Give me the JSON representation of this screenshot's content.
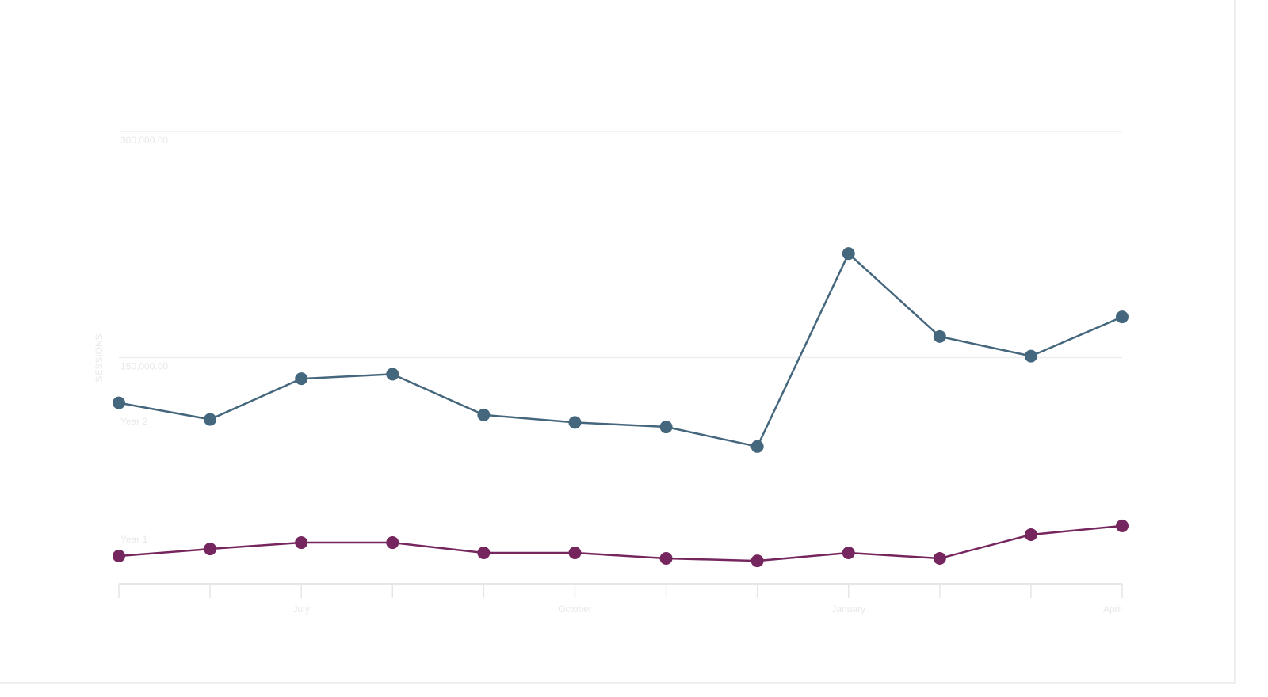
{
  "chart_data": {
    "type": "line",
    "y_label": "SESSIONS",
    "categories": [
      null,
      null,
      "July",
      null,
      null,
      "October",
      null,
      null,
      "January",
      null,
      null,
      "April"
    ],
    "series": [
      {
        "name": "Year 2",
        "color": "#45677d",
        "values": [
          120000,
          109000,
          136000,
          139000,
          112000,
          107000,
          104000,
          91000,
          219000,
          164000,
          151000,
          177000
        ]
      },
      {
        "name": "Year 1",
        "color": "#76265e",
        "values": [
          18400,
          23100,
          27300,
          27300,
          20500,
          20500,
          16800,
          15200,
          20500,
          16800,
          32600,
          38400
        ]
      }
    ],
    "ylim": [
      0,
      300000
    ],
    "yticks": [
      {
        "value": 150000,
        "label": "150,000.00"
      },
      {
        "value": 300000,
        "label": "300,000.00"
      }
    ],
    "grid": true
  }
}
